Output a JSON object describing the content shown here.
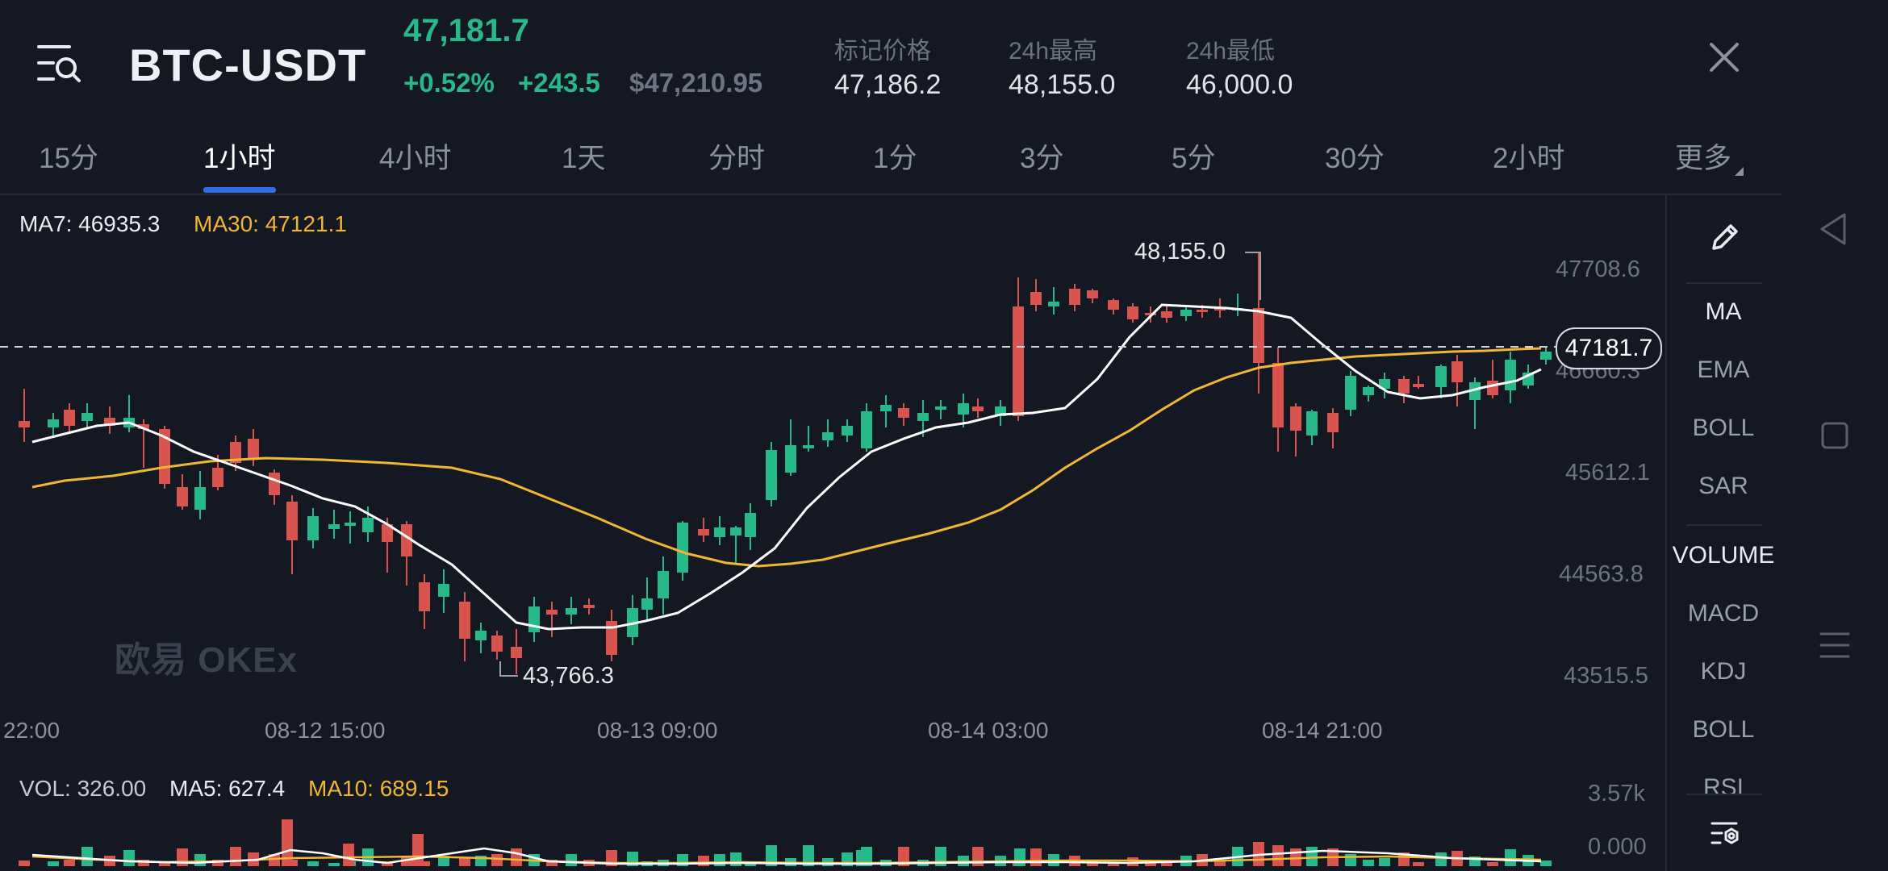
{
  "header": {
    "symbol": "BTC-USDT",
    "last_price": "47,181.7",
    "change_pct": "+0.52%",
    "change_abs": "+243.5",
    "usd_price": "$47,210.95",
    "stats": [
      {
        "label": "标记价格",
        "value": "47,186.2"
      },
      {
        "label": "24h最高",
        "value": "48,155.0"
      },
      {
        "label": "24h最低",
        "value": "46,000.0"
      }
    ],
    "menu_icon": "menu-search-icon",
    "close_icon": "close-icon"
  },
  "tabs": [
    "15分",
    "1小时",
    "4小时",
    "1天",
    "分时",
    "1分",
    "3分",
    "5分",
    "30分",
    "2小时",
    "更多"
  ],
  "active_tab": "1小时",
  "legend": {
    "ma7": "MA7: 46935.3",
    "ma30": "MA30: 47121.1",
    "vol": "VOL: 326.00",
    "ma5": "MA5: 627.4",
    "ma10": "MA10: 689.15"
  },
  "axis": {
    "price_ticks": [
      "47708.6",
      "46660.3",
      "45612.1",
      "44563.8",
      "43515.5"
    ],
    "time_ticks": [
      "22:00",
      "08-12 15:00",
      "08-13 09:00",
      "08-14 03:00",
      "08-14 21:00"
    ],
    "vol_ticks": [
      "3.57k",
      "0.000"
    ]
  },
  "annotations": {
    "high": "48,155.0",
    "low": "43,766.3",
    "current_price_tag": "47181.7"
  },
  "watermark": "欧易 OKEx",
  "indicators": {
    "main": [
      "MA",
      "EMA",
      "BOLL",
      "SAR"
    ],
    "sub": [
      "VOLUME",
      "MACD",
      "KDJ",
      "BOLL",
      "RSI"
    ],
    "edit_icon": "pencil-icon",
    "settings_icon": "indicator-settings-icon"
  },
  "colors": {
    "up": "#27b989",
    "down": "#d9534f",
    "ma7": "#ffffff",
    "ma30": "#f0b634",
    "accent": "#2d6fe0"
  },
  "system_nav": [
    "back-icon",
    "home-icon",
    "recents-icon"
  ]
}
